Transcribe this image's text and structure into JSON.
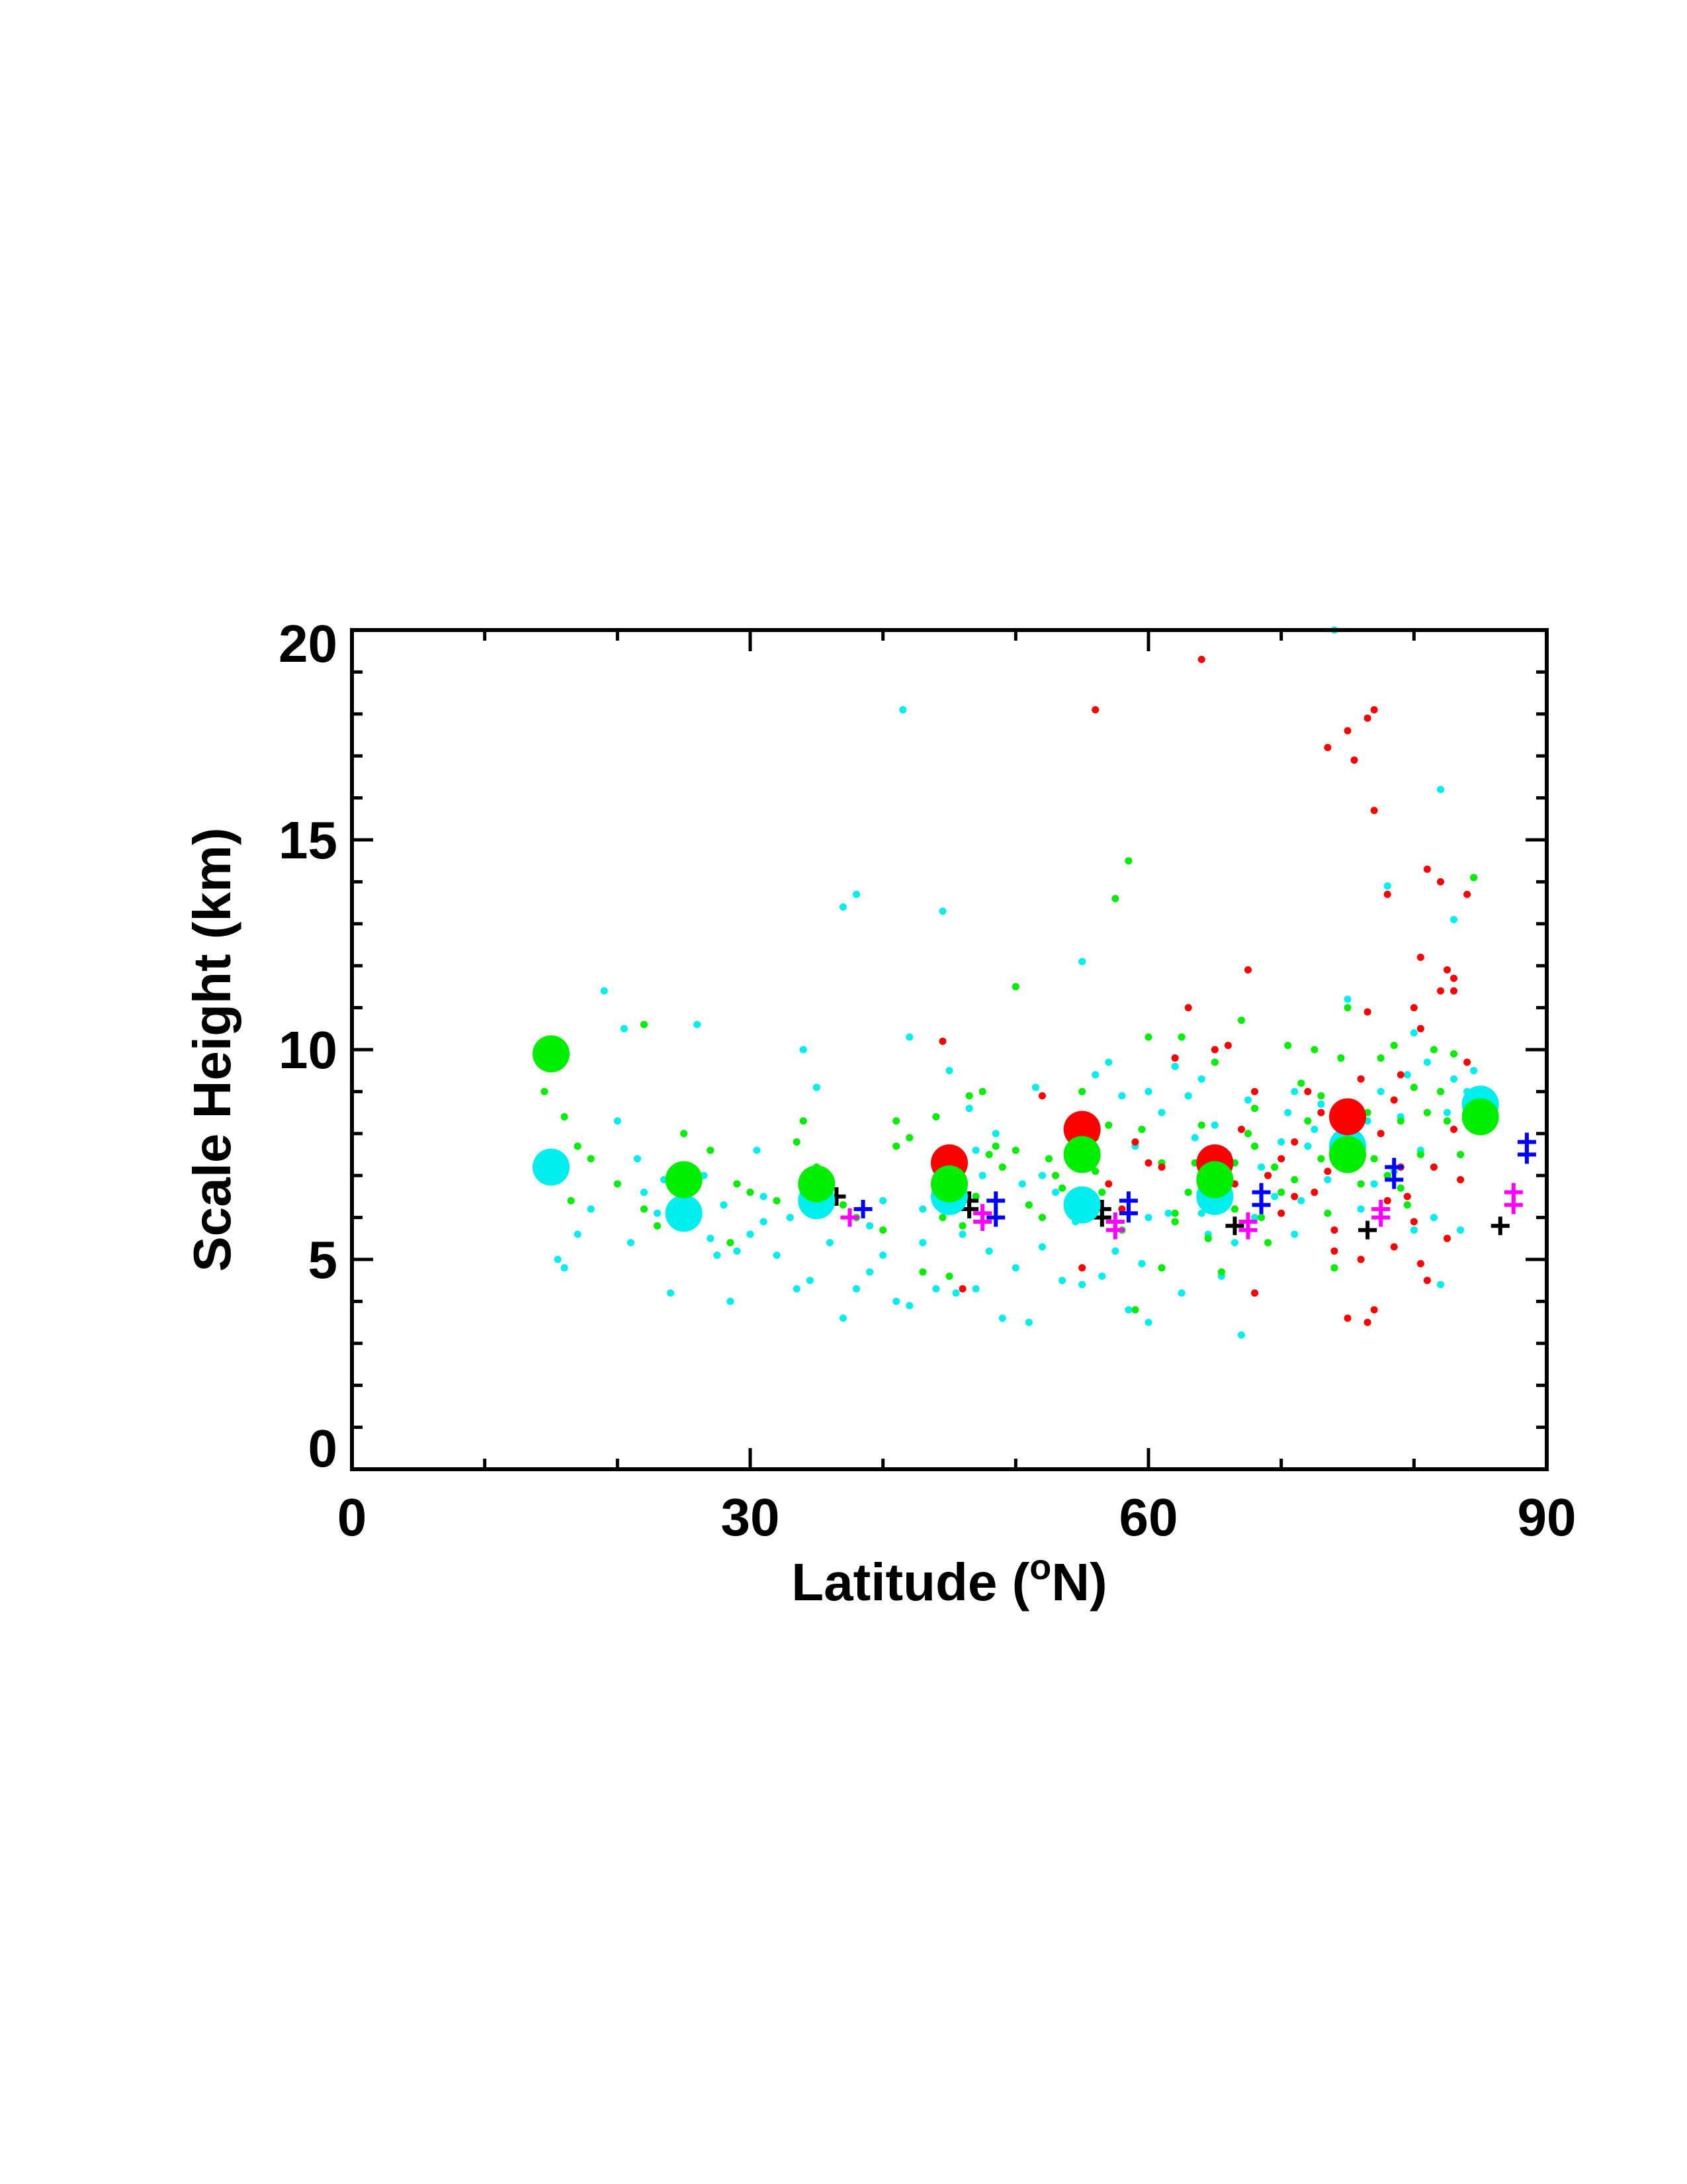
{
  "chart_data": {
    "type": "scatter",
    "xlabel": "Latitude (",
    "xlabel_superscript": "o",
    "xlabel_suffix": "N)",
    "ylabel": "Scale Height (km)",
    "xlim": [
      0,
      90
    ],
    "ylim": [
      0,
      20
    ],
    "xticks": [
      0,
      30,
      60,
      90
    ],
    "yticks": [
      0,
      5,
      10,
      15,
      20
    ],
    "x_minor_step": 10,
    "y_minor_step": 1,
    "grid": false,
    "colors": {
      "red": "#ff0000",
      "green": "#00ee00",
      "cyan": "#00eeee",
      "black": "#000000",
      "blue": "#0000ff",
      "magenta": "#ff00ff"
    },
    "means": {
      "cyan": [
        [
          15,
          7.2
        ],
        [
          25,
          6.1
        ],
        [
          35,
          6.4
        ],
        [
          45,
          6.5
        ],
        [
          55,
          6.3
        ],
        [
          65,
          6.5
        ],
        [
          75,
          7.7
        ],
        [
          85,
          8.7
        ]
      ],
      "red": [
        [
          45,
          7.3
        ],
        [
          55,
          8.1
        ],
        [
          65,
          7.3
        ],
        [
          75,
          8.4
        ]
      ],
      "green": [
        [
          15,
          9.9
        ],
        [
          25,
          6.9
        ],
        [
          35,
          6.8
        ],
        [
          45,
          6.8
        ],
        [
          55,
          7.5
        ],
        [
          65,
          6.9
        ],
        [
          75,
          7.5
        ],
        [
          85,
          8.4
        ]
      ]
    },
    "crosses": {
      "black": [
        [
          36.5,
          6.5
        ],
        [
          46.5,
          6.4
        ],
        [
          46.5,
          6.2
        ],
        [
          56.5,
          6.2
        ],
        [
          56.5,
          6.0
        ],
        [
          66.5,
          5.8
        ],
        [
          76.5,
          5.7
        ],
        [
          86.5,
          5.8
        ]
      ],
      "blue": [
        [
          38.5,
          6.2
        ],
        [
          48.5,
          6.4
        ],
        [
          48.5,
          6.0
        ],
        [
          58.5,
          6.4
        ],
        [
          58.5,
          6.1
        ],
        [
          68.5,
          6.6
        ],
        [
          68.5,
          6.3
        ],
        [
          78.5,
          7.2
        ],
        [
          78.5,
          6.9
        ],
        [
          88.5,
          7.8
        ],
        [
          88.5,
          7.5
        ]
      ],
      "magenta": [
        [
          37.5,
          6.0
        ],
        [
          47.5,
          6.1
        ],
        [
          47.5,
          5.9
        ],
        [
          57.5,
          5.9
        ],
        [
          57.5,
          5.7
        ],
        [
          67.5,
          5.9
        ],
        [
          67.5,
          5.7
        ],
        [
          77.5,
          6.2
        ],
        [
          77.5,
          6.0
        ],
        [
          87.5,
          6.6
        ],
        [
          87.5,
          6.3
        ]
      ]
    },
    "points": {
      "red": [
        [
          44.5,
          10.2
        ],
        [
          46,
          4.3
        ],
        [
          52,
          8.9
        ],
        [
          55,
          4.8
        ],
        [
          56,
          18.1
        ],
        [
          57,
          6.8
        ],
        [
          58,
          6.2
        ],
        [
          59,
          7.8
        ],
        [
          60,
          7.3
        ],
        [
          61,
          7.2
        ],
        [
          62,
          9.8
        ],
        [
          63,
          11.0
        ],
        [
          64,
          19.3
        ],
        [
          65,
          10.0
        ],
        [
          66,
          10.1
        ],
        [
          66.5,
          6.8
        ],
        [
          67,
          8.1
        ],
        [
          67.5,
          11.9
        ],
        [
          68,
          9.0
        ],
        [
          68,
          4.2
        ],
        [
          69,
          7.0
        ],
        [
          70,
          7.4
        ],
        [
          70,
          6.1
        ],
        [
          71,
          6.5
        ],
        [
          72,
          9.0
        ],
        [
          73,
          8.5
        ],
        [
          73.5,
          17.2
        ],
        [
          74,
          5.7
        ],
        [
          74.5,
          8.2
        ],
        [
          75,
          3.6
        ],
        [
          75,
          17.6
        ],
        [
          75.5,
          16.9
        ],
        [
          76,
          5.0
        ],
        [
          76,
          9.3
        ],
        [
          76.5,
          17.9
        ],
        [
          76.5,
          3.5
        ],
        [
          76.5,
          10.9
        ],
        [
          77,
          18.1
        ],
        [
          77,
          3.8
        ],
        [
          77,
          15.7
        ],
        [
          77.5,
          8.0
        ],
        [
          78,
          6.4
        ],
        [
          78,
          13.7
        ],
        [
          78.5,
          8.8
        ],
        [
          79,
          7.2
        ],
        [
          79,
          9.4
        ],
        [
          79.5,
          6.5
        ],
        [
          80,
          11.0
        ],
        [
          80,
          5.9
        ],
        [
          80.5,
          10.5
        ],
        [
          80.5,
          12.2
        ],
        [
          81,
          14.3
        ],
        [
          81,
          4.5
        ],
        [
          81.5,
          7.2
        ],
        [
          82,
          11.4
        ],
        [
          82,
          14.0
        ],
        [
          82.5,
          5.5
        ],
        [
          82.5,
          11.9
        ],
        [
          83,
          8.1
        ],
        [
          83,
          11.4
        ],
        [
          83,
          11.7
        ],
        [
          83.5,
          6.9
        ],
        [
          84,
          13.7
        ],
        [
          84,
          9.7
        ],
        [
          71,
          7.8
        ],
        [
          72.5,
          6.6
        ],
        [
          78.5,
          5.3
        ],
        [
          80.5,
          4.9
        ],
        [
          74,
          5.2
        ],
        [
          73.5,
          7.1
        ]
      ],
      "green": [
        [
          14.5,
          9.0
        ],
        [
          16,
          8.4
        ],
        [
          16.5,
          6.4
        ],
        [
          17,
          7.7
        ],
        [
          18,
          7.4
        ],
        [
          20,
          6.8
        ],
        [
          22,
          10.6
        ],
        [
          22,
          6.2
        ],
        [
          23,
          5.8
        ],
        [
          25,
          8.0
        ],
        [
          27,
          7.6
        ],
        [
          28.5,
          5.4
        ],
        [
          29,
          6.8
        ],
        [
          30,
          6.6
        ],
        [
          32,
          6.4
        ],
        [
          33.5,
          7.8
        ],
        [
          34,
          8.3
        ],
        [
          35,
          7.2
        ],
        [
          36,
          6.9
        ],
        [
          37,
          6.3
        ],
        [
          38,
          6.0
        ],
        [
          40,
          5.7
        ],
        [
          41,
          7.7
        ],
        [
          41,
          8.3
        ],
        [
          42,
          7.9
        ],
        [
          43,
          4.7
        ],
        [
          44,
          8.4
        ],
        [
          44.5,
          6.0
        ],
        [
          45,
          7.5
        ],
        [
          45,
          4.6
        ],
        [
          46,
          5.8
        ],
        [
          47,
          6.5
        ],
        [
          47.5,
          9.0
        ],
        [
          48,
          7.5
        ],
        [
          48.5,
          7.7
        ],
        [
          49,
          7.2
        ],
        [
          50,
          7.6
        ],
        [
          50,
          11.5
        ],
        [
          51,
          6.3
        ],
        [
          52,
          6.0
        ],
        [
          53,
          7.0
        ],
        [
          53.5,
          6.7
        ],
        [
          54,
          8.0
        ],
        [
          55,
          9.0
        ],
        [
          56,
          7.9
        ],
        [
          56.5,
          6.6
        ],
        [
          57,
          8.2
        ],
        [
          57.5,
          13.6
        ],
        [
          58,
          5.7
        ],
        [
          58.5,
          14.5
        ],
        [
          59,
          3.8
        ],
        [
          59.5,
          8.1
        ],
        [
          60,
          10.3
        ],
        [
          61,
          7.3
        ],
        [
          61,
          4.8
        ],
        [
          62,
          5.9
        ],
        [
          62.5,
          10.3
        ],
        [
          63,
          6.6
        ],
        [
          63.5,
          7.3
        ],
        [
          64,
          8.2
        ],
        [
          64.5,
          5.5
        ],
        [
          65,
          9.7
        ],
        [
          65.5,
          4.7
        ],
        [
          66,
          6.8
        ],
        [
          66.5,
          7.3
        ],
        [
          67,
          10.7
        ],
        [
          67.5,
          8.0
        ],
        [
          68,
          7.7
        ],
        [
          68.5,
          6.0
        ],
        [
          69,
          5.4
        ],
        [
          69.5,
          7.2
        ],
        [
          70,
          6.6
        ],
        [
          70.5,
          10.1
        ],
        [
          71,
          6.9
        ],
        [
          71.5,
          9.2
        ],
        [
          72,
          8.3
        ],
        [
          72.5,
          10.0
        ],
        [
          73,
          7.4
        ],
        [
          73.5,
          6.1
        ],
        [
          74,
          4.8
        ],
        [
          74.5,
          9.8
        ],
        [
          75,
          11.0
        ],
        [
          75.5,
          8.1
        ],
        [
          76,
          6.8
        ],
        [
          76.5,
          8.5
        ],
        [
          77,
          7.4
        ],
        [
          77.5,
          9.8
        ],
        [
          78,
          7.0
        ],
        [
          78.5,
          10.1
        ],
        [
          79,
          8.3
        ],
        [
          79.5,
          6.3
        ],
        [
          80,
          9.1
        ],
        [
          80.5,
          7.5
        ],
        [
          81,
          8.5
        ],
        [
          81.5,
          10.0
        ],
        [
          82,
          9.0
        ],
        [
          82.5,
          8.3
        ],
        [
          83,
          9.9
        ],
        [
          83.5,
          7.5
        ],
        [
          84,
          8.8
        ],
        [
          84.5,
          14.1
        ],
        [
          56,
          7.1
        ],
        [
          52.5,
          7.4
        ],
        [
          46.5,
          8.9
        ],
        [
          68,
          8.6
        ],
        [
          73,
          8.9
        ],
        [
          79,
          6.7
        ],
        [
          62,
          6.1
        ],
        [
          66.5,
          6.2
        ]
      ],
      "cyan": [
        [
          15.5,
          5.0
        ],
        [
          16,
          4.8
        ],
        [
          17,
          5.6
        ],
        [
          18,
          6.2
        ],
        [
          19,
          11.4
        ],
        [
          20,
          8.3
        ],
        [
          20.5,
          10.5
        ],
        [
          21,
          5.4
        ],
        [
          22,
          6.6
        ],
        [
          23,
          6.1
        ],
        [
          24,
          4.2
        ],
        [
          25,
          5.8
        ],
        [
          26,
          10.6
        ],
        [
          27,
          5.5
        ],
        [
          27.5,
          5.1
        ],
        [
          28,
          6.3
        ],
        [
          28.5,
          4.0
        ],
        [
          29,
          5.2
        ],
        [
          30,
          5.6
        ],
        [
          30.5,
          7.6
        ],
        [
          31,
          6.5
        ],
        [
          32,
          5.1
        ],
        [
          33,
          6.0
        ],
        [
          33.5,
          4.3
        ],
        [
          34,
          10.0
        ],
        [
          34.5,
          4.5
        ],
        [
          35,
          9.1
        ],
        [
          36,
          5.4
        ],
        [
          37,
          13.4
        ],
        [
          37,
          3.6
        ],
        [
          38,
          13.7
        ],
        [
          38,
          4.3
        ],
        [
          39,
          4.7
        ],
        [
          40,
          5.1
        ],
        [
          40,
          6.4
        ],
        [
          41,
          4.0
        ],
        [
          41.5,
          18.1
        ],
        [
          42,
          10.3
        ],
        [
          42,
          3.9
        ],
        [
          43,
          5.4
        ],
        [
          44,
          4.3
        ],
        [
          44.5,
          13.3
        ],
        [
          45,
          9.5
        ],
        [
          45.5,
          4.2
        ],
        [
          46,
          5.6
        ],
        [
          46.5,
          8.6
        ],
        [
          47,
          4.3
        ],
        [
          47.5,
          7.0
        ],
        [
          48,
          5.2
        ],
        [
          48.5,
          8.0
        ],
        [
          49,
          3.6
        ],
        [
          50,
          4.8
        ],
        [
          50.5,
          6.8
        ],
        [
          51,
          3.5
        ],
        [
          51.5,
          9.1
        ],
        [
          52,
          5.3
        ],
        [
          53,
          6.6
        ],
        [
          53.5,
          4.5
        ],
        [
          54,
          8.2
        ],
        [
          54.5,
          5.9
        ],
        [
          55,
          12.1
        ],
        [
          55,
          4.4
        ],
        [
          56,
          9.4
        ],
        [
          56.5,
          4.6
        ],
        [
          57,
          9.7
        ],
        [
          57.5,
          5.2
        ],
        [
          58,
          8.9
        ],
        [
          58.5,
          3.8
        ],
        [
          59,
          7.7
        ],
        [
          59.5,
          4.9
        ],
        [
          60,
          9.0
        ],
        [
          60,
          3.5
        ],
        [
          61,
          8.5
        ],
        [
          61.5,
          6.1
        ],
        [
          62,
          9.6
        ],
        [
          62.5,
          4.2
        ],
        [
          63,
          8.9
        ],
        [
          63.5,
          7.9
        ],
        [
          64,
          9.3
        ],
        [
          64.5,
          5.6
        ],
        [
          65,
          8.2
        ],
        [
          65.5,
          4.6
        ],
        [
          66,
          7.5
        ],
        [
          66.5,
          5.4
        ],
        [
          67,
          3.2
        ],
        [
          67.5,
          8.8
        ],
        [
          68,
          6.0
        ],
        [
          68.5,
          7.2
        ],
        [
          69,
          7.0
        ],
        [
          69.5,
          6.5
        ],
        [
          70,
          7.8
        ],
        [
          70.5,
          8.5
        ],
        [
          71,
          9.0
        ],
        [
          71.5,
          6.4
        ],
        [
          72,
          7.7
        ],
        [
          72.5,
          8.1
        ],
        [
          73,
          8.7
        ],
        [
          73.5,
          6.9
        ],
        [
          74,
          20.0
        ],
        [
          74.5,
          9.8
        ],
        [
          75,
          11.2
        ],
        [
          75.5,
          7.9
        ],
        [
          76,
          8.5
        ],
        [
          76.5,
          8.3
        ],
        [
          77,
          6.8
        ],
        [
          77.5,
          9.0
        ],
        [
          78,
          13.9
        ],
        [
          78.5,
          7.1
        ],
        [
          79,
          8.4
        ],
        [
          79.5,
          9.4
        ],
        [
          80,
          10.4
        ],
        [
          80.5,
          7.6
        ],
        [
          81,
          9.7
        ],
        [
          81.5,
          6.0
        ],
        [
          82,
          16.2
        ],
        [
          82,
          4.4
        ],
        [
          82.5,
          8.5
        ],
        [
          83,
          13.1
        ],
        [
          83,
          9.3
        ],
        [
          83.5,
          5.7
        ],
        [
          84,
          9.0
        ],
        [
          84.5,
          9.5
        ],
        [
          60,
          6.0
        ],
        [
          55.5,
          7.8
        ],
        [
          52,
          7.0
        ],
        [
          47,
          7.6
        ],
        [
          43,
          6.2
        ],
        [
          39,
          5.8
        ],
        [
          35,
          6.3
        ],
        [
          31,
          5.9
        ],
        [
          26.5,
          7.0
        ],
        [
          23.5,
          6.9
        ],
        [
          21.5,
          7.4
        ],
        [
          64,
          6.1
        ],
        [
          71,
          5.6
        ],
        [
          76,
          6.2
        ],
        [
          80,
          5.7
        ]
      ]
    }
  }
}
